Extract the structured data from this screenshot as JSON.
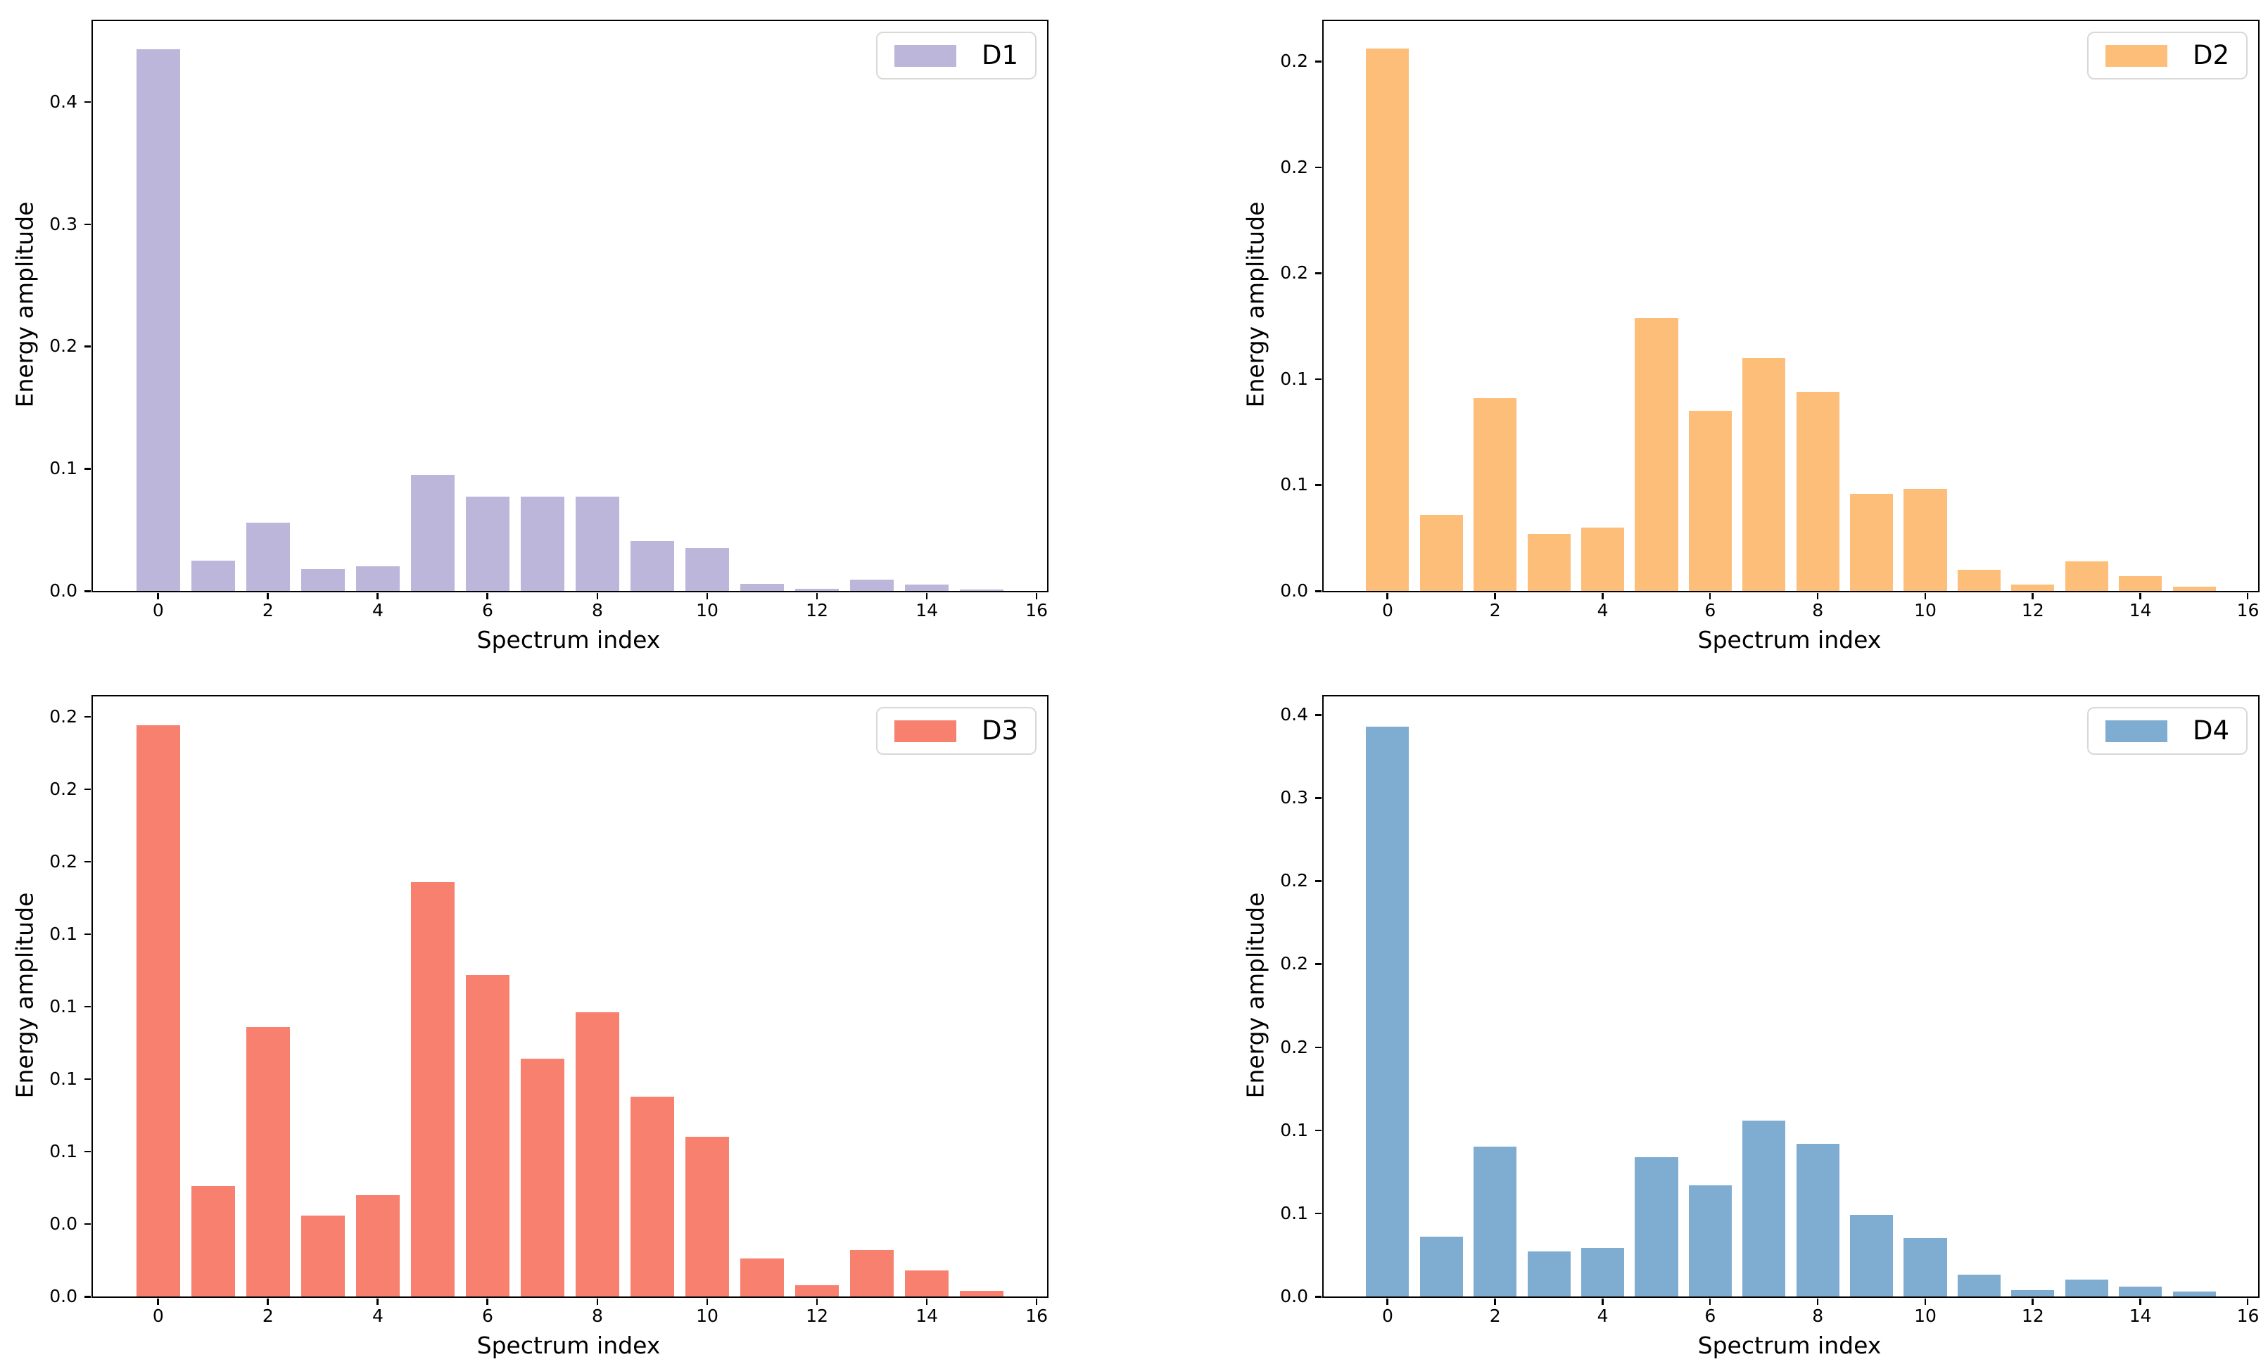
{
  "figure": {
    "background": "#ffffff",
    "xlabel": "Spectrum index",
    "ylabel": "Energy amplitude"
  },
  "chart_data": [
    {
      "type": "bar",
      "series_label": "D1",
      "color": "#bcb6da",
      "xlabel": "Spectrum index",
      "ylabel": "Energy amplitude",
      "x": [
        0,
        1,
        2,
        3,
        4,
        5,
        6,
        7,
        8,
        9,
        10,
        11,
        12,
        13,
        14,
        15
      ],
      "values": [
        0.443,
        0.025,
        0.056,
        0.018,
        0.02,
        0.095,
        0.077,
        0.077,
        0.077,
        0.041,
        0.035,
        0.006,
        0.002,
        0.009,
        0.005,
        0.001
      ],
      "bar_width": 0.8,
      "xlim": [
        -1.19,
        16.19
      ],
      "ylim": [
        0,
        0.466
      ],
      "xticks": {
        "values": [
          0,
          2,
          4,
          6,
          8,
          10,
          12,
          14,
          16
        ],
        "labels": [
          "0",
          "2",
          "4",
          "6",
          "8",
          "10",
          "12",
          "14",
          "16"
        ]
      },
      "yticks": {
        "values": [
          0,
          0.1,
          0.2,
          0.3,
          0.4
        ],
        "labels": [
          "0.0",
          "0.1",
          "0.2",
          "0.3",
          "0.4"
        ]
      },
      "legend": {
        "label": "D1",
        "position": "upper-right"
      },
      "grid": false
    },
    {
      "type": "bar",
      "series_label": "D2",
      "color": "#fdbe7a",
      "xlabel": "Spectrum index",
      "ylabel": "Energy amplitude",
      "x": [
        0,
        1,
        2,
        3,
        4,
        5,
        6,
        7,
        8,
        9,
        10,
        11,
        12,
        13,
        14,
        15
      ],
      "values": [
        0.256,
        0.036,
        0.091,
        0.027,
        0.03,
        0.129,
        0.085,
        0.11,
        0.094,
        0.046,
        0.048,
        0.01,
        0.003,
        0.014,
        0.007,
        0.002
      ],
      "bar_width": 0.8,
      "xlim": [
        -1.19,
        16.19
      ],
      "ylim": [
        0,
        0.269
      ],
      "xticks": {
        "values": [
          0,
          2,
          4,
          6,
          8,
          10,
          12,
          14,
          16
        ],
        "labels": [
          "0",
          "2",
          "4",
          "6",
          "8",
          "10",
          "12",
          "14",
          "16"
        ]
      },
      "yticks": {
        "values": [
          0,
          0.05,
          0.1,
          0.15,
          0.2,
          0.25
        ],
        "labels": [
          "0.0",
          "0.1",
          "0.1",
          "0.2",
          "0.2",
          "0.2"
        ]
      },
      "legend": {
        "label": "D2",
        "position": "upper-right"
      },
      "grid": false
    },
    {
      "type": "bar",
      "series_label": "D3",
      "color": "#f8806e",
      "xlabel": "Spectrum index",
      "ylabel": "Energy amplitude",
      "x": [
        0,
        1,
        2,
        3,
        4,
        5,
        6,
        7,
        8,
        9,
        10,
        11,
        12,
        13,
        14,
        15
      ],
      "values": [
        0.197,
        0.038,
        0.093,
        0.028,
        0.035,
        0.143,
        0.111,
        0.082,
        0.098,
        0.069,
        0.055,
        0.013,
        0.004,
        0.016,
        0.009,
        0.002
      ],
      "bar_width": 0.8,
      "xlim": [
        -1.19,
        16.19
      ],
      "ylim": [
        0,
        0.207
      ],
      "xticks": {
        "values": [
          0,
          2,
          4,
          6,
          8,
          10,
          12,
          14,
          16
        ],
        "labels": [
          "0",
          "2",
          "4",
          "6",
          "8",
          "10",
          "12",
          "14",
          "16"
        ]
      },
      "yticks": {
        "values": [
          0,
          0.025,
          0.05,
          0.075,
          0.1,
          0.125,
          0.15,
          0.175,
          0.2
        ],
        "labels": [
          "0.0",
          "0.0",
          "0.1",
          "0.1",
          "0.1",
          "0.1",
          "0.2",
          "0.2",
          "0.2"
        ]
      },
      "legend": {
        "label": "D3",
        "position": "upper-right"
      },
      "grid": false
    },
    {
      "type": "bar",
      "series_label": "D4",
      "color": "#7fadd1",
      "xlabel": "Spectrum index",
      "ylabel": "Energy amplitude",
      "x": [
        0,
        1,
        2,
        3,
        4,
        5,
        6,
        7,
        8,
        9,
        10,
        11,
        12,
        13,
        14,
        15
      ],
      "values": [
        0.343,
        0.036,
        0.09,
        0.027,
        0.029,
        0.084,
        0.067,
        0.106,
        0.092,
        0.049,
        0.035,
        0.013,
        0.004,
        0.01,
        0.006,
        0.003
      ],
      "bar_width": 0.8,
      "xlim": [
        -1.19,
        16.19
      ],
      "ylim": [
        0,
        0.361
      ],
      "xticks": {
        "values": [
          0,
          2,
          4,
          6,
          8,
          10,
          12,
          14,
          16
        ],
        "labels": [
          "0",
          "2",
          "4",
          "6",
          "8",
          "10",
          "12",
          "14",
          "16"
        ]
      },
      "yticks": {
        "values": [
          0,
          0.05,
          0.1,
          0.15,
          0.2,
          0.25,
          0.3,
          0.35
        ],
        "labels": [
          "0.0",
          "0.1",
          "0.1",
          "0.2",
          "0.2",
          "0.2",
          "0.3",
          "0.4"
        ]
      },
      "legend": {
        "label": "D4",
        "position": "upper-right"
      },
      "grid": false
    }
  ]
}
